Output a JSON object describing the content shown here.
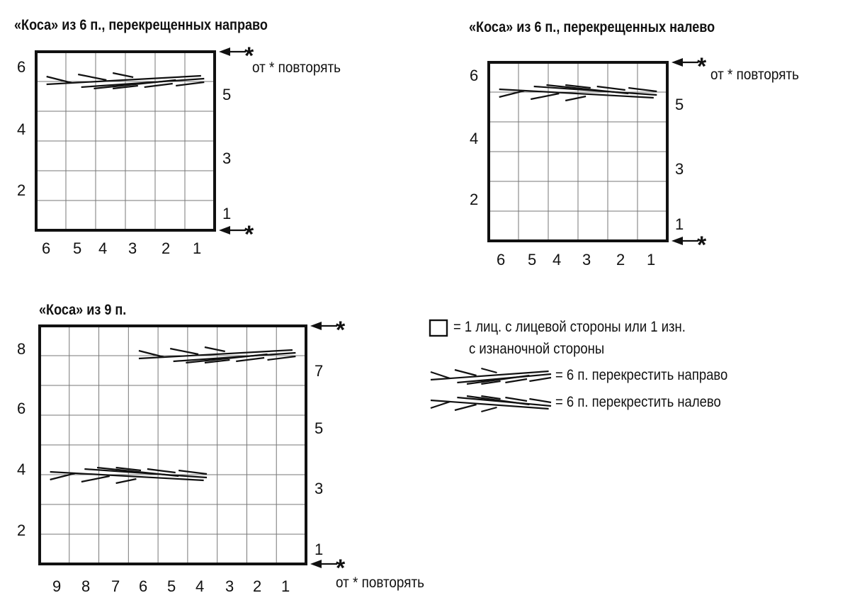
{
  "charts": [
    {
      "title": "«Коса» из 6 п., перекрещенных направо",
      "cols": 6,
      "rows": 6,
      "col_labels": [
        "6",
        "5",
        "4",
        "3",
        "2",
        "1"
      ],
      "left_row_labels": [
        "6",
        "4",
        "2"
      ],
      "right_row_labels": [
        "5",
        "3",
        "1"
      ],
      "repeat_text": "от * повторять",
      "repeat_marker": "*",
      "cable": {
        "type": "cross-right",
        "row": 5,
        "stitches": [
          1,
          6
        ]
      }
    },
    {
      "title": "«Коса» из 6 п., перекрещенных налево",
      "cols": 6,
      "rows": 6,
      "col_labels": [
        "6",
        "5",
        "4",
        "3",
        "2",
        "1"
      ],
      "left_row_labels": [
        "6",
        "4",
        "2"
      ],
      "right_row_labels": [
        "5",
        "3",
        "1"
      ],
      "repeat_text": "от * повторять",
      "repeat_marker": "*",
      "cable": {
        "type": "cross-left",
        "row": 5,
        "stitches": [
          1,
          6
        ]
      }
    },
    {
      "title": "«Коса» из 9 п.",
      "cols": 9,
      "rows": 8,
      "col_labels": [
        "9",
        "8",
        "7",
        "6",
        "5",
        "4",
        "3",
        "2",
        "1"
      ],
      "left_row_labels": [
        "8",
        "6",
        "4",
        "2"
      ],
      "right_row_labels": [
        "7",
        "5",
        "3",
        "1"
      ],
      "repeat_text": "от * повторять",
      "repeat_marker": "*",
      "cables": [
        {
          "type": "cross-right",
          "row": 7,
          "stitches": [
            1,
            6
          ]
        },
        {
          "type": "cross-left",
          "row": 3,
          "stitches": [
            4,
            9
          ]
        }
      ]
    }
  ],
  "legend": {
    "items": [
      {
        "symbol": "empty-cell",
        "text": "= 1 лиц. с лицевой стороны или 1 изн.",
        "text2": "с изнаночной стороны"
      },
      {
        "symbol": "cross-right",
        "text": "= 6 п. перекрестить направо"
      },
      {
        "symbol": "cross-left",
        "text": "= 6 п. перекрестить налево"
      }
    ]
  },
  "colors": {
    "ink": "#111111",
    "grid": "#777777",
    "background": "#ffffff"
  }
}
